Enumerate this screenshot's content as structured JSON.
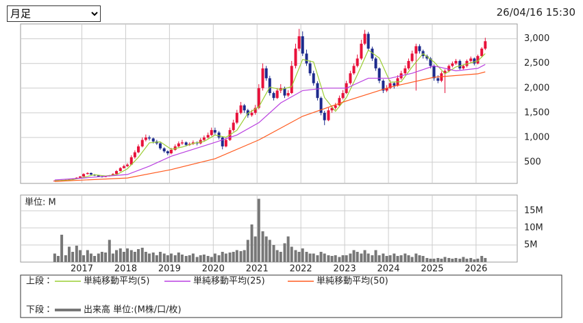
{
  "controls": {
    "period": "月足"
  },
  "timestamp": "26/04/16 15:30",
  "chart_data": {
    "type": "candlestick",
    "x": [
      2016.38,
      2016.46,
      2016.54,
      2016.63,
      2016.71,
      2016.79,
      2016.88,
      2016.96,
      2017.04,
      2017.13,
      2017.21,
      2017.29,
      2017.38,
      2017.46,
      2017.54,
      2017.63,
      2017.71,
      2017.79,
      2017.88,
      2017.96,
      2018.04,
      2018.13,
      2018.21,
      2018.29,
      2018.38,
      2018.46,
      2018.54,
      2018.63,
      2018.71,
      2018.79,
      2018.88,
      2018.96,
      2019.04,
      2019.13,
      2019.21,
      2019.29,
      2019.38,
      2019.46,
      2019.54,
      2019.63,
      2019.71,
      2019.79,
      2019.88,
      2019.96,
      2020.04,
      2020.13,
      2020.21,
      2020.29,
      2020.38,
      2020.46,
      2020.54,
      2020.63,
      2020.71,
      2020.79,
      2020.88,
      2020.96,
      2021.04,
      2021.13,
      2021.21,
      2021.29,
      2021.38,
      2021.46,
      2021.54,
      2021.63,
      2021.71,
      2021.79,
      2021.88,
      2021.96,
      2022.04,
      2022.13,
      2022.21,
      2022.29,
      2022.38,
      2022.46,
      2022.54,
      2022.63,
      2022.71,
      2022.79,
      2022.88,
      2022.96,
      2023.04,
      2023.13,
      2023.21,
      2023.29,
      2023.38,
      2023.46,
      2023.54,
      2023.63,
      2023.71,
      2023.79,
      2023.88,
      2023.96,
      2024.04,
      2024.13,
      2024.21,
      2024.29,
      2024.38,
      2024.46,
      2024.54,
      2024.63,
      2024.71,
      2024.79,
      2024.88,
      2024.96,
      2025.04,
      2025.13,
      2025.21,
      2025.29,
      2025.38,
      2025.46,
      2025.54,
      2025.63,
      2025.71,
      2025.79,
      2025.88,
      2025.96,
      2026.04,
      2026.13,
      2026.21
    ],
    "xlim": [
      2015.6,
      2026.94
    ],
    "xticks": [
      2017,
      2018,
      2019,
      2020,
      2021,
      2022,
      2023,
      2024,
      2025,
      2026
    ],
    "ohlc": [
      [
        120,
        130,
        115,
        125
      ],
      [
        125,
        135,
        120,
        130
      ],
      [
        130,
        140,
        125,
        135
      ],
      [
        135,
        145,
        130,
        140
      ],
      [
        140,
        155,
        135,
        150
      ],
      [
        150,
        170,
        145,
        165
      ],
      [
        165,
        195,
        160,
        185
      ],
      [
        185,
        220,
        180,
        210
      ],
      [
        210,
        275,
        205,
        260
      ],
      [
        260,
        295,
        250,
        280
      ],
      [
        280,
        290,
        240,
        250
      ],
      [
        250,
        260,
        220,
        230
      ],
      [
        230,
        240,
        200,
        210
      ],
      [
        210,
        215,
        190,
        200
      ],
      [
        200,
        225,
        195,
        215
      ],
      [
        215,
        240,
        210,
        230
      ],
      [
        230,
        275,
        225,
        260
      ],
      [
        260,
        340,
        255,
        320
      ],
      [
        320,
        400,
        310,
        380
      ],
      [
        380,
        450,
        370,
        420
      ],
      [
        420,
        480,
        400,
        450
      ],
      [
        450,
        640,
        440,
        600
      ],
      [
        600,
        740,
        570,
        700
      ],
      [
        700,
        860,
        680,
        820
      ],
      [
        820,
        1000,
        800,
        950
      ],
      [
        950,
        1060,
        920,
        1000
      ],
      [
        1000,
        1040,
        940,
        980
      ],
      [
        980,
        1000,
        880,
        920
      ],
      [
        920,
        950,
        850,
        880
      ],
      [
        880,
        900,
        750,
        780
      ],
      [
        780,
        800,
        690,
        720
      ],
      [
        720,
        740,
        640,
        680
      ],
      [
        680,
        790,
        660,
        750
      ],
      [
        750,
        860,
        730,
        820
      ],
      [
        820,
        920,
        800,
        880
      ],
      [
        880,
        950,
        850,
        900
      ],
      [
        900,
        920,
        820,
        850
      ],
      [
        850,
        900,
        830,
        870
      ],
      [
        870,
        940,
        850,
        900
      ],
      [
        900,
        920,
        840,
        880
      ],
      [
        880,
        990,
        860,
        950
      ],
      [
        950,
        1040,
        930,
        1000
      ],
      [
        1000,
        1100,
        980,
        1050
      ],
      [
        1050,
        1200,
        1030,
        1150
      ],
      [
        1150,
        1200,
        1060,
        1100
      ],
      [
        1100,
        1130,
        960,
        1000
      ],
      [
        1000,
        1020,
        760,
        820
      ],
      [
        820,
        990,
        800,
        950
      ],
      [
        950,
        1200,
        930,
        1150
      ],
      [
        1150,
        1360,
        1120,
        1300
      ],
      [
        1300,
        1560,
        1270,
        1500
      ],
      [
        1500,
        1720,
        1470,
        1650
      ],
      [
        1650,
        1680,
        1500,
        1550
      ],
      [
        1550,
        1580,
        1400,
        1450
      ],
      [
        1450,
        1560,
        1420,
        1500
      ],
      [
        1500,
        1660,
        1460,
        1600
      ],
      [
        1600,
        2080,
        1570,
        2000
      ],
      [
        2000,
        2500,
        1950,
        2400
      ],
      [
        2400,
        2450,
        2150,
        2200
      ],
      [
        2200,
        2250,
        1850,
        1900
      ],
      [
        1900,
        1930,
        1750,
        1800
      ],
      [
        1800,
        2000,
        1780,
        1950
      ],
      [
        1950,
        2080,
        1900,
        2000
      ],
      [
        2000,
        2030,
        1800,
        1850
      ],
      [
        1850,
        1960,
        1820,
        1900
      ],
      [
        1900,
        2550,
        1880,
        2450
      ],
      [
        2450,
        2900,
        2400,
        2800
      ],
      [
        2800,
        3200,
        2750,
        3050
      ],
      [
        3050,
        3150,
        2650,
        2700
      ],
      [
        2700,
        2780,
        2450,
        2500
      ],
      [
        2500,
        2560,
        2250,
        2300
      ],
      [
        2300,
        2350,
        2050,
        2100
      ],
      [
        2100,
        2140,
        1750,
        1800
      ],
      [
        1800,
        1830,
        1450,
        1500
      ],
      [
        1500,
        1540,
        1250,
        1350
      ],
      [
        1350,
        1600,
        1330,
        1550
      ],
      [
        1550,
        1650,
        1500,
        1600
      ],
      [
        1600,
        1700,
        1560,
        1650
      ],
      [
        1650,
        1850,
        1620,
        1800
      ],
      [
        1800,
        1960,
        1770,
        1900
      ],
      [
        1900,
        2150,
        1880,
        2100
      ],
      [
        2100,
        2350,
        2070,
        2300
      ],
      [
        2300,
        2500,
        2270,
        2450
      ],
      [
        2450,
        2680,
        2420,
        2600
      ],
      [
        2600,
        2980,
        2570,
        2900
      ],
      [
        2900,
        3180,
        2870,
        3100
      ],
      [
        3100,
        3140,
        2750,
        2800
      ],
      [
        2800,
        2840,
        2550,
        2600
      ],
      [
        2600,
        2630,
        2350,
        2400
      ],
      [
        2400,
        2420,
        2100,
        2150
      ],
      [
        2150,
        2180,
        1900,
        1950
      ],
      [
        1950,
        2060,
        1920,
        2000
      ],
      [
        2000,
        2160,
        1980,
        2100
      ],
      [
        2100,
        2130,
        1990,
        2050
      ],
      [
        2050,
        2260,
        2030,
        2200
      ],
      [
        2200,
        2350,
        2170,
        2300
      ],
      [
        2300,
        2460,
        2270,
        2400
      ],
      [
        2400,
        2600,
        2370,
        2550
      ],
      [
        2550,
        2760,
        2520,
        2700
      ],
      [
        2700,
        2900,
        1950,
        2850
      ],
      [
        2850,
        2890,
        2700,
        2750
      ],
      [
        2750,
        2780,
        2600,
        2650
      ],
      [
        2650,
        2680,
        2560,
        2600
      ],
      [
        2600,
        2630,
        2400,
        2450
      ],
      [
        2450,
        2480,
        2150,
        2200
      ],
      [
        2200,
        2260,
        2100,
        2150
      ],
      [
        2150,
        2340,
        2120,
        2300
      ],
      [
        2300,
        2380,
        1900,
        2350
      ],
      [
        2350,
        2480,
        2320,
        2450
      ],
      [
        2450,
        2540,
        2420,
        2500
      ],
      [
        2500,
        2590,
        2470,
        2550
      ],
      [
        2550,
        2580,
        2370,
        2400
      ],
      [
        2400,
        2480,
        2380,
        2450
      ],
      [
        2450,
        2580,
        2420,
        2550
      ],
      [
        2550,
        2640,
        2510,
        2600
      ],
      [
        2600,
        2620,
        2460,
        2500
      ],
      [
        2500,
        2680,
        2480,
        2650
      ],
      [
        2650,
        2830,
        2620,
        2800
      ],
      [
        2800,
        3020,
        2770,
        2950
      ]
    ],
    "up_color": "#e8113a",
    "down_color": "#1c2a8c",
    "ylim": [
      70,
      3300
    ],
    "yticks": [
      500,
      {
        "value": 1000,
        "label": "1,000"
      },
      {
        "value": 1500,
        "label": "1,500"
      },
      {
        "value": 2000,
        "label": "2,000"
      },
      {
        "value": 2500,
        "label": "2,500"
      },
      {
        "value": 3000,
        "label": "3,000"
      }
    ],
    "grid": true,
    "legend_label": "上段：",
    "series": [
      {
        "name": "単純移動平均(5)",
        "color": "#9acd32",
        "x": [
          2016.38,
          2016.54,
          2016.79,
          2017.04,
          2017.29,
          2017.54,
          2017.79,
          2018.04,
          2018.29,
          2018.54,
          2018.79,
          2019.04,
          2019.29,
          2019.54,
          2019.79,
          2020.04,
          2020.29,
          2020.54,
          2020.79,
          2021.04,
          2021.29,
          2021.54,
          2021.79,
          2022.04,
          2022.29,
          2022.54,
          2022.79,
          2023.04,
          2023.29,
          2023.54,
          2023.79,
          2024.04,
          2024.29,
          2024.54,
          2024.79,
          2025.04,
          2025.29,
          2025.54,
          2025.79,
          2026.04,
          2026.21
        ],
        "values": [
          125,
          130,
          144,
          194,
          246,
          221,
          245,
          366,
          598,
          890,
          912,
          762,
          806,
          880,
          920,
          1050,
          1004,
          1144,
          1490,
          1620,
          2020,
          1970,
          2030,
          2580,
          2530,
          1810,
          1530,
          1810,
          2270,
          2770,
          2610,
          2120,
          2130,
          2430,
          2700,
          2530,
          2290,
          2430,
          2490,
          2550,
          2700
        ]
      },
      {
        "name": "単純移動平均(25)",
        "color": "#b93fe0",
        "x": [
          2016.38,
          2017.04,
          2018.04,
          2018.54,
          2019.04,
          2020.04,
          2020.54,
          2021.04,
          2021.54,
          2022.04,
          2022.54,
          2023.04,
          2023.54,
          2024.04,
          2024.54,
          2025.04,
          2025.54,
          2026.04,
          2026.21
        ],
        "values": [
          140,
          180,
          250,
          420,
          620,
          900,
          1050,
          1300,
          1700,
          1950,
          2000,
          2000,
          2200,
          2200,
          2300,
          2450,
          2350,
          2400,
          2480
        ]
      },
      {
        "name": "単純移動平均(50)",
        "color": "#ff5a1e",
        "x": [
          2016.38,
          2018.04,
          2019.04,
          2020.04,
          2021.04,
          2022.04,
          2023.04,
          2024.04,
          2025.04,
          2026.04,
          2026.21
        ],
        "values": [
          110,
          180,
          350,
          570,
          950,
          1430,
          1740,
          2020,
          2220,
          2290,
          2330
        ]
      }
    ],
    "volume": {
      "type": "bar",
      "unit_label": "単位: M",
      "legend_label": "下段：",
      "name": "出来高 単位:(M株/口/枚)",
      "color": "#777777",
      "ylim": [
        0,
        19.6
      ],
      "yticks": [
        {
          "value": 5,
          "label": "5M"
        },
        {
          "value": 10,
          "label": "10M"
        },
        {
          "value": 15,
          "label": "15M"
        }
      ],
      "values": [
        2.5,
        1.8,
        8.0,
        2.0,
        4.5,
        3.0,
        4.8,
        3.5,
        2.0,
        3.5,
        2.5,
        1.8,
        2.5,
        3.0,
        2.8,
        6.5,
        2.5,
        3.5,
        4.0,
        3.0,
        4.0,
        3.5,
        3.0,
        3.8,
        4.2,
        3.0,
        2.5,
        2.8,
        2.0,
        3.0,
        2.5,
        2.0,
        2.5,
        2.0,
        2.8,
        2.2,
        1.8,
        2.0,
        2.5,
        1.5,
        2.0,
        2.2,
        1.8,
        1.5,
        2.5,
        2.0,
        3.0,
        2.5,
        2.8,
        3.0,
        3.5,
        3.2,
        3.5,
        6.5,
        11.0,
        7.5,
        18.5,
        9.0,
        7.5,
        6.5,
        5.0,
        3.5,
        3.0,
        5.5,
        7.5,
        4.5,
        3.5,
        3.0,
        4.0,
        3.0,
        2.5,
        2.5,
        2.0,
        3.0,
        2.5,
        2.0,
        1.8,
        2.0,
        1.5,
        2.0,
        2.0,
        2.5,
        3.5,
        3.0,
        2.5,
        3.5,
        2.5,
        2.0,
        3.5,
        2.0,
        2.5,
        1.8,
        2.0,
        2.5,
        1.8,
        2.0,
        2.5,
        2.0,
        1.5,
        2.5,
        2.0,
        1.8,
        1.2,
        1.0,
        1.0,
        1.2,
        1.0,
        1.5,
        1.2,
        1.0,
        1.2,
        1.0,
        1.5,
        1.0,
        1.2,
        0.8,
        1.0,
        1.8,
        1.2
      ]
    }
  }
}
